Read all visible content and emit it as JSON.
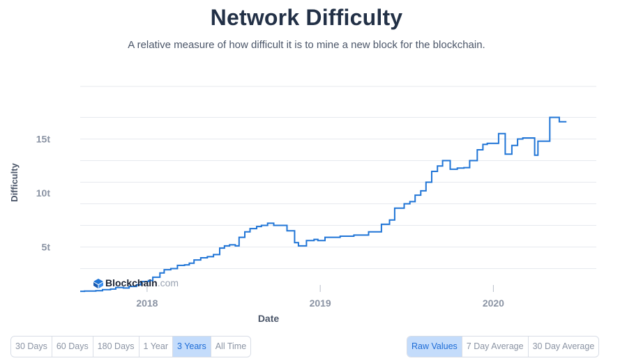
{
  "header": {
    "title": "Network Difficulty",
    "subtitle": "A relative measure of how difficult it is to mine a new block for the blockchain."
  },
  "watermark": {
    "brand": "Blockchain",
    "suffix": ".com"
  },
  "colors": {
    "line": "#1f74d6",
    "grid": "#e6e9ee",
    "axis_text": "#8a93a3",
    "title": "#223046",
    "active_bg": "#c4dcfb",
    "active_text": "#1c6bd6"
  },
  "range_buttons": [
    {
      "label": "30 Days",
      "active": false
    },
    {
      "label": "60 Days",
      "active": false
    },
    {
      "label": "180 Days",
      "active": false
    },
    {
      "label": "1 Year",
      "active": false
    },
    {
      "label": "3 Years",
      "active": true
    },
    {
      "label": "All Time",
      "active": false
    }
  ],
  "average_buttons": [
    {
      "label": "Raw Values",
      "active": true
    },
    {
      "label": "7 Day Average",
      "active": false
    },
    {
      "label": "30 Day Average",
      "active": false
    }
  ],
  "chart_data": {
    "type": "line",
    "title": "Network Difficulty",
    "xlabel": "Date",
    "ylabel": "Difficulty",
    "step": true,
    "grid": true,
    "xlim": [
      "2017-08-13",
      "2020-08-05"
    ],
    "ylim": [
      0,
      18
    ],
    "x_ticks": [
      {
        "label": "2018",
        "date": "2018-01-01"
      },
      {
        "label": "2019",
        "date": "2019-01-01"
      },
      {
        "label": "2020",
        "date": "2020-01-01"
      }
    ],
    "y_ticks": [
      {
        "label": "5t",
        "value": 5
      },
      {
        "label": "10t",
        "value": 10
      },
      {
        "label": "15t",
        "value": 15
      }
    ],
    "series": [
      {
        "unit": "trillion",
        "points": [
          [
            "2017-08-13",
            0.9
          ],
          [
            "2017-08-22",
            0.92
          ],
          [
            "2017-09-07",
            0.92
          ],
          [
            "2017-09-15",
            0.95
          ],
          [
            "2017-09-29",
            1.05
          ],
          [
            "2017-10-16",
            1.1
          ],
          [
            "2017-10-27",
            1.25
          ],
          [
            "2017-11-12",
            1.2
          ],
          [
            "2017-11-24",
            1.35
          ],
          [
            "2017-12-10",
            1.5
          ],
          [
            "2017-12-19",
            1.8
          ],
          [
            "2018-01-04",
            1.9
          ],
          [
            "2018-01-13",
            2.2
          ],
          [
            "2018-01-28",
            2.6
          ],
          [
            "2018-02-06",
            2.9
          ],
          [
            "2018-02-20",
            3.0
          ],
          [
            "2018-03-06",
            3.3
          ],
          [
            "2018-03-21",
            3.35
          ],
          [
            "2018-03-31",
            3.5
          ],
          [
            "2018-04-10",
            3.8
          ],
          [
            "2018-04-24",
            4.0
          ],
          [
            "2018-05-08",
            4.1
          ],
          [
            "2018-05-21",
            4.3
          ],
          [
            "2018-06-03",
            4.9
          ],
          [
            "2018-06-13",
            5.1
          ],
          [
            "2018-06-24",
            5.2
          ],
          [
            "2018-07-06",
            5.1
          ],
          [
            "2018-07-14",
            5.9
          ],
          [
            "2018-07-26",
            6.4
          ],
          [
            "2018-08-06",
            6.7
          ],
          [
            "2018-08-20",
            6.9
          ],
          [
            "2018-08-30",
            7.0
          ],
          [
            "2018-09-12",
            7.2
          ],
          [
            "2018-09-25",
            7.0
          ],
          [
            "2018-10-11",
            7.0
          ],
          [
            "2018-10-23",
            6.5
          ],
          [
            "2018-11-08",
            5.4
          ],
          [
            "2018-11-16",
            5.1
          ],
          [
            "2018-12-03",
            5.6
          ],
          [
            "2018-12-19",
            5.7
          ],
          [
            "2018-12-27",
            5.6
          ],
          [
            "2019-01-11",
            5.9
          ],
          [
            "2019-02-12",
            6.0
          ],
          [
            "2019-03-13",
            6.1
          ],
          [
            "2019-04-13",
            6.4
          ],
          [
            "2019-05-10",
            7.1
          ],
          [
            "2019-05-27",
            7.5
          ],
          [
            "2019-06-07",
            8.6
          ],
          [
            "2019-06-27",
            9.0
          ],
          [
            "2019-07-09",
            9.2
          ],
          [
            "2019-07-20",
            9.8
          ],
          [
            "2019-08-01",
            10.2
          ],
          [
            "2019-08-12",
            11.0
          ],
          [
            "2019-08-24",
            12.0
          ],
          [
            "2019-09-05",
            12.5
          ],
          [
            "2019-09-16",
            13.0
          ],
          [
            "2019-10-02",
            12.2
          ],
          [
            "2019-10-17",
            12.3
          ],
          [
            "2019-10-31",
            12.35
          ],
          [
            "2019-11-12",
            13.0
          ],
          [
            "2019-11-28",
            14.0
          ],
          [
            "2019-12-10",
            14.5
          ],
          [
            "2019-12-19",
            14.6
          ],
          [
            "2020-01-12",
            15.5
          ],
          [
            "2020-01-26",
            13.6
          ],
          [
            "2020-02-09",
            14.4
          ],
          [
            "2020-02-21",
            15.0
          ],
          [
            "2020-03-03",
            15.1
          ],
          [
            "2020-03-28",
            13.5
          ],
          [
            "2020-04-04",
            14.8
          ],
          [
            "2020-04-29",
            17.0
          ],
          [
            "2020-05-19",
            16.6
          ]
        ],
        "end": "2020-06-03"
      }
    ]
  }
}
